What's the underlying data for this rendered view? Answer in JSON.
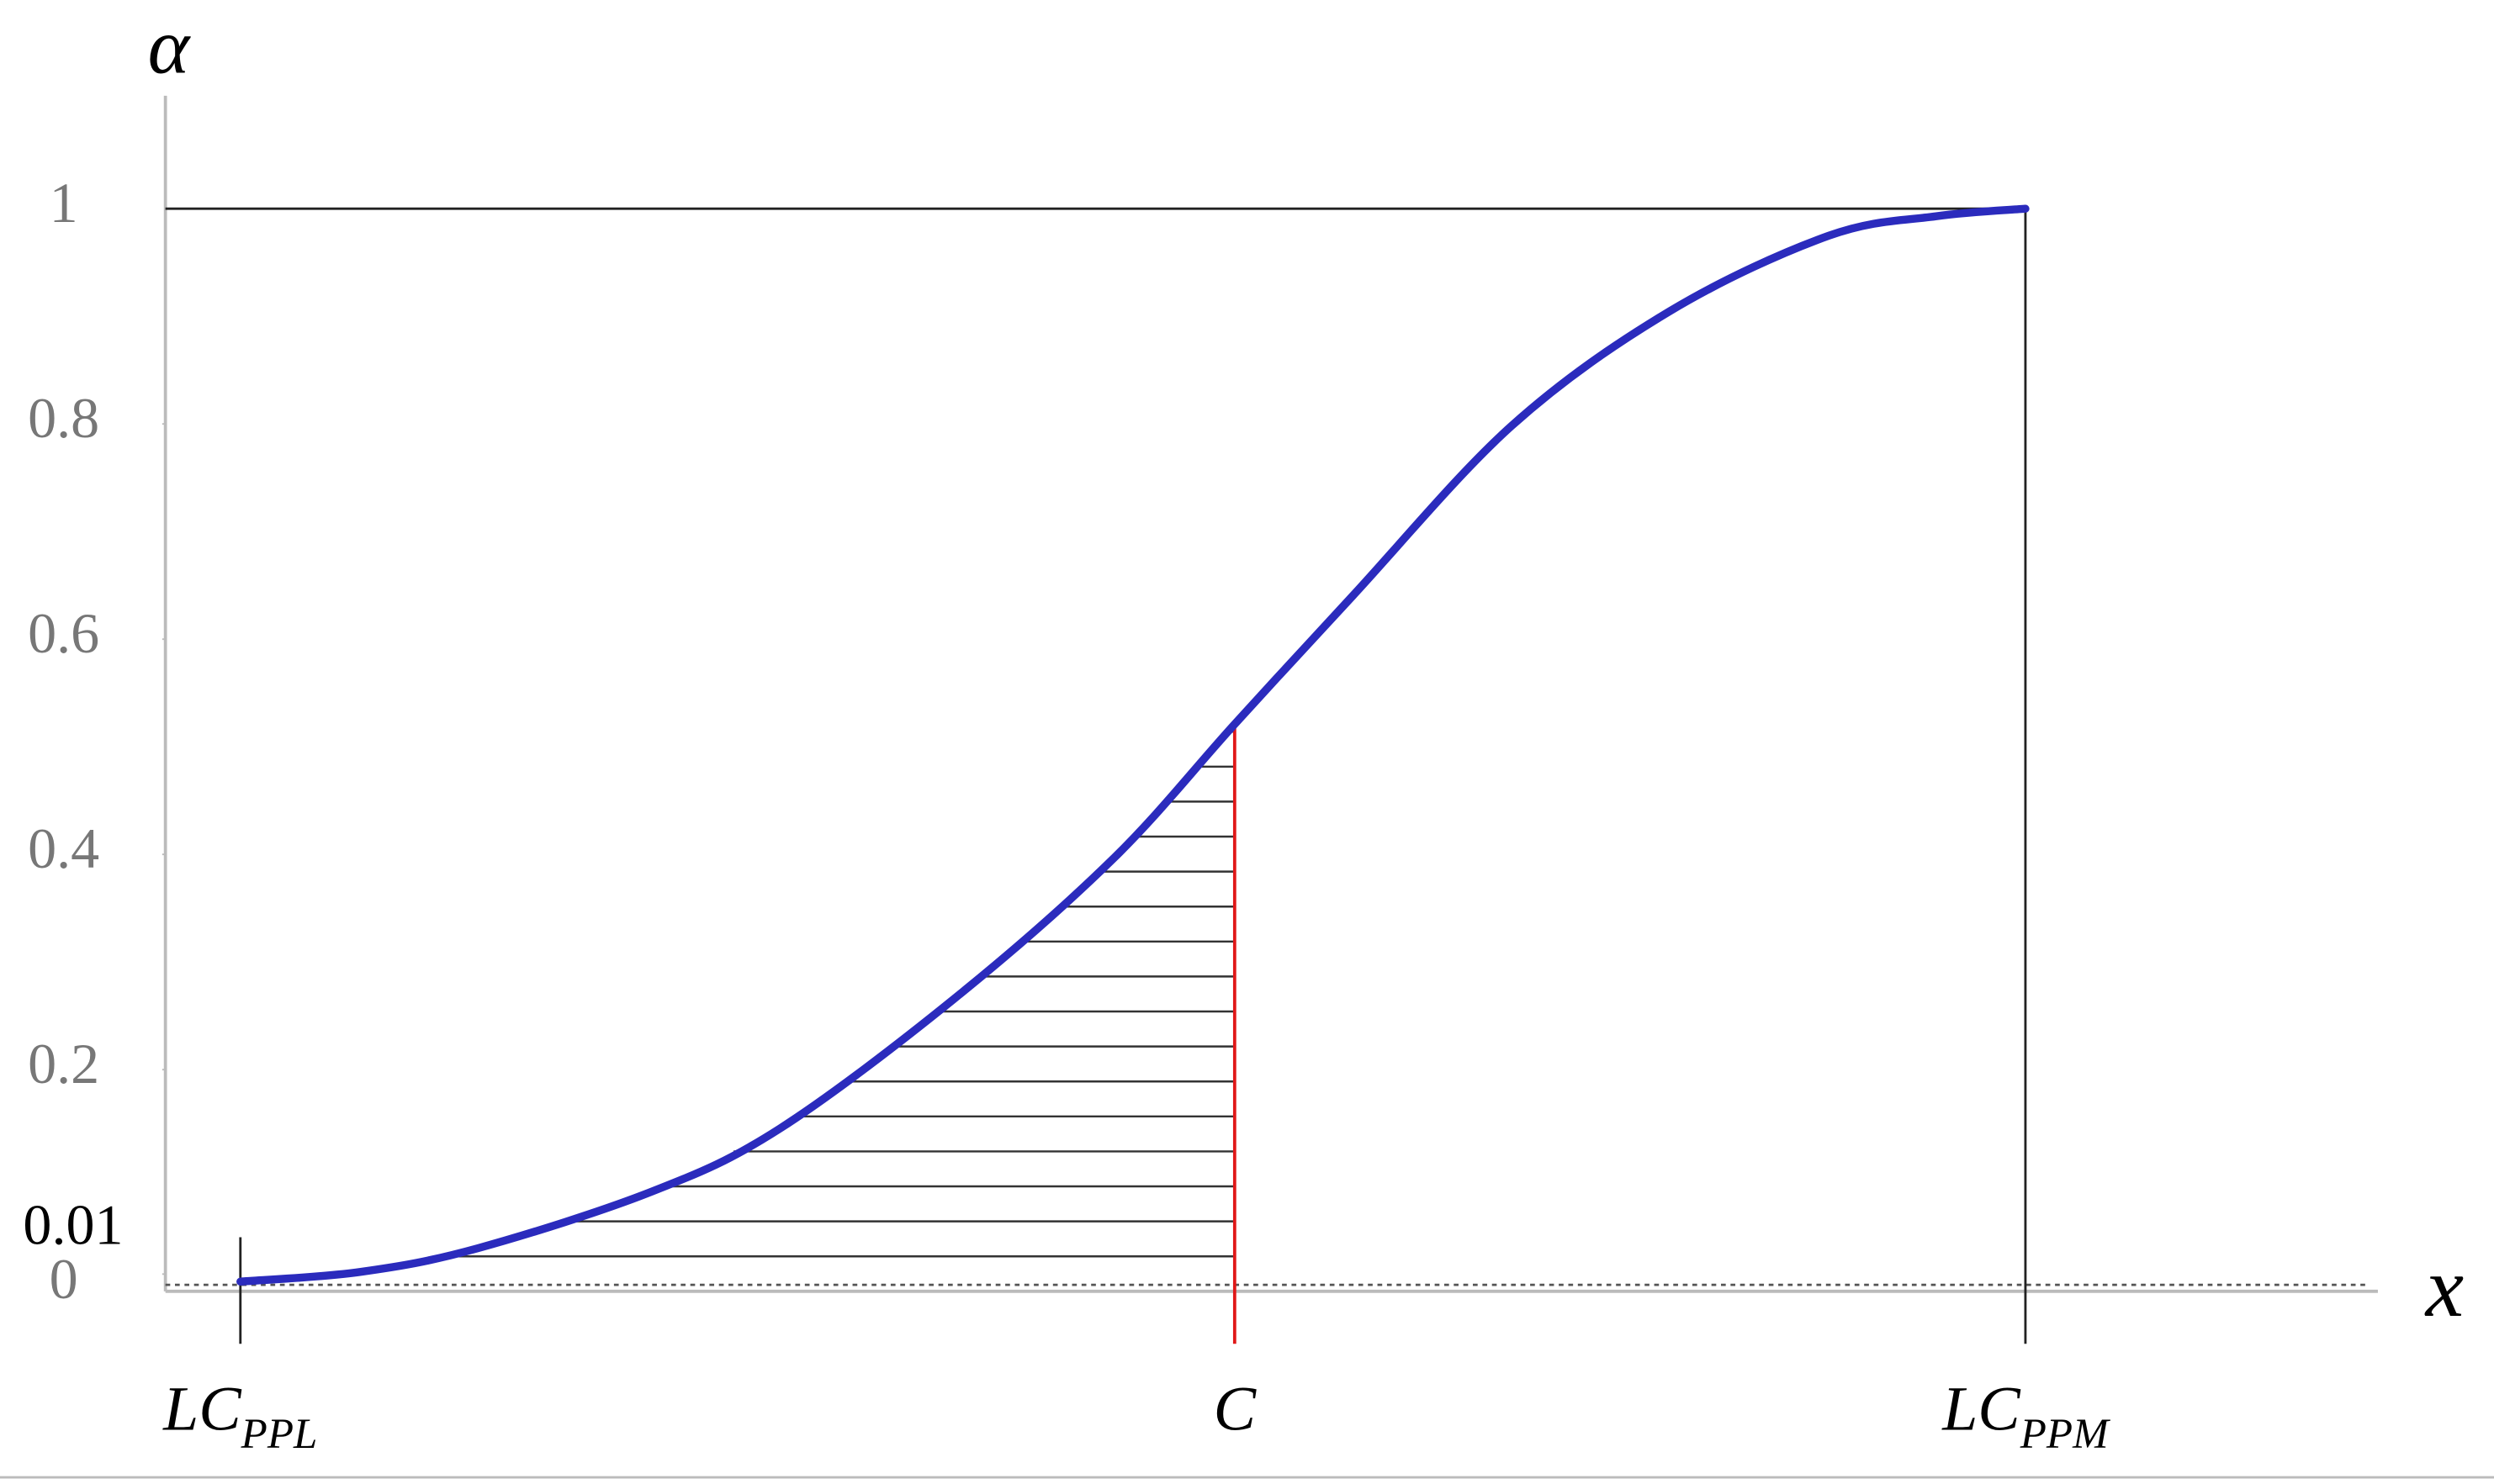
{
  "chart_data": {
    "type": "line",
    "y_label": "α",
    "x_label": "x",
    "xlim": [
      -0.042,
      1.193
    ],
    "ylim": [
      -0.006,
      1.105
    ],
    "xticks": [
      {
        "value": 0,
        "label": "LC",
        "sub": "PPL"
      },
      {
        "value": 0.557,
        "label": "C"
      },
      {
        "value": 1,
        "label": "LC",
        "sub": "PPM"
      }
    ],
    "yticks": [
      0,
      {
        "value": 0.01,
        "label": "0.01"
      },
      {
        "value": 0.2,
        "label": "0.2"
      },
      {
        "value": 0.4,
        "label": "0.4"
      },
      {
        "value": 0.6,
        "label": "0.6"
      },
      {
        "value": 0.8,
        "label": "0.8"
      },
      1
    ],
    "series": [
      {
        "color": "#2b2bbd",
        "x": [
          0,
          0.067,
          0.133,
          0.231,
          0.302,
          0.4,
          0.489,
          0.557,
          0.623,
          0.712,
          0.801,
          0.89,
          0.95,
          1
        ],
        "values": [
          0.003,
          0.012,
          0.034,
          0.087,
          0.145,
          0.266,
          0.396,
          0.521,
          0.64,
          0.798,
          0.905,
          0.975,
          0.993,
          1
        ]
      }
    ]
  }
}
